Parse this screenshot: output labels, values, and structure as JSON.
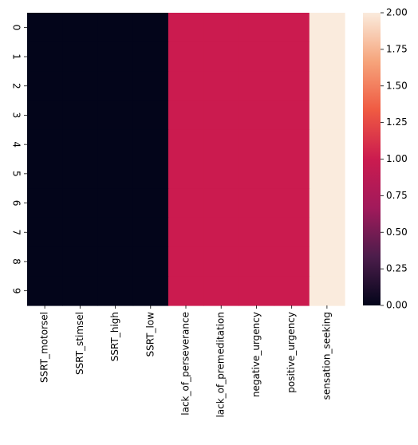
{
  "chart_data": {
    "type": "heatmap",
    "columns": [
      "SSRT_motorsel",
      "SSRT_stimsel",
      "SSRT_high",
      "SSRT_low",
      "lack_of_perseverance",
      "lack_of_premeditation",
      "negative_urgency",
      "positive_urgency",
      "sensation_seeking"
    ],
    "rows": [
      "0",
      "1",
      "2",
      "3",
      "4",
      "5",
      "6",
      "7",
      "8",
      "9"
    ],
    "values": [
      [
        0,
        0,
        0,
        0,
        1,
        1,
        1,
        1,
        2
      ],
      [
        0,
        0,
        0,
        0,
        1,
        1,
        1,
        1,
        2
      ],
      [
        0,
        0,
        0,
        0,
        1,
        1,
        1,
        1,
        2
      ],
      [
        0,
        0,
        0,
        0,
        1,
        1,
        1,
        1,
        2
      ],
      [
        0,
        0,
        0,
        0,
        1,
        1,
        1,
        1,
        2
      ],
      [
        0,
        0,
        0,
        0,
        1,
        1,
        1,
        1,
        2
      ],
      [
        0,
        0,
        0,
        0,
        1,
        1,
        1,
        1,
        2
      ],
      [
        0,
        0,
        0,
        0,
        1,
        1,
        1,
        1,
        2
      ],
      [
        0,
        0,
        0,
        0,
        1,
        1,
        1,
        1,
        2
      ],
      [
        0,
        0,
        0,
        0,
        1,
        1,
        1,
        1,
        2
      ]
    ],
    "colorbar": {
      "min": 0,
      "max": 2,
      "ticks": [
        "0.00",
        "0.25",
        "0.50",
        "0.75",
        "1.00",
        "1.25",
        "1.50",
        "1.75",
        "2.00"
      ],
      "colormap": "rocket",
      "color_stops": [
        "#03051a",
        "#4c1d4b",
        "#a11a5b",
        "#cb1b4f",
        "#ef5a42",
        "#f6a47b",
        "#faebdd"
      ]
    },
    "title": "",
    "xlabel": "",
    "ylabel": ""
  }
}
